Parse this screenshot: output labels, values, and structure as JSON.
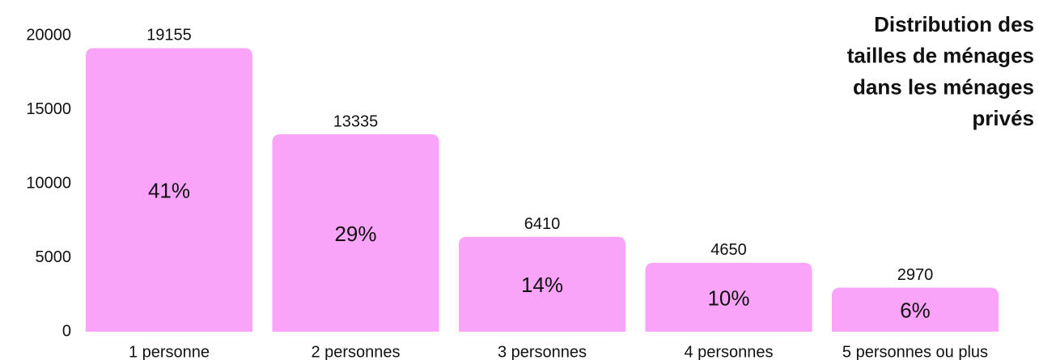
{
  "chart_data": {
    "type": "bar",
    "title": [
      "Distribution des",
      "tailles de ménages",
      "dans les ménages",
      "privés"
    ],
    "categories": [
      "1 personne",
      "2 personnes",
      "3 personnes",
      "4 personnes",
      "5 personnes ou plus"
    ],
    "values": [
      19155,
      13335,
      6410,
      4650,
      2970
    ],
    "percent_labels": [
      "41%",
      "29%",
      "14%",
      "10%",
      "6%"
    ],
    "color": "#f9a3f9",
    "ylim": [
      0,
      20000
    ],
    "yticks": [
      0,
      5000,
      10000,
      15000,
      20000
    ],
    "grid": false
  }
}
